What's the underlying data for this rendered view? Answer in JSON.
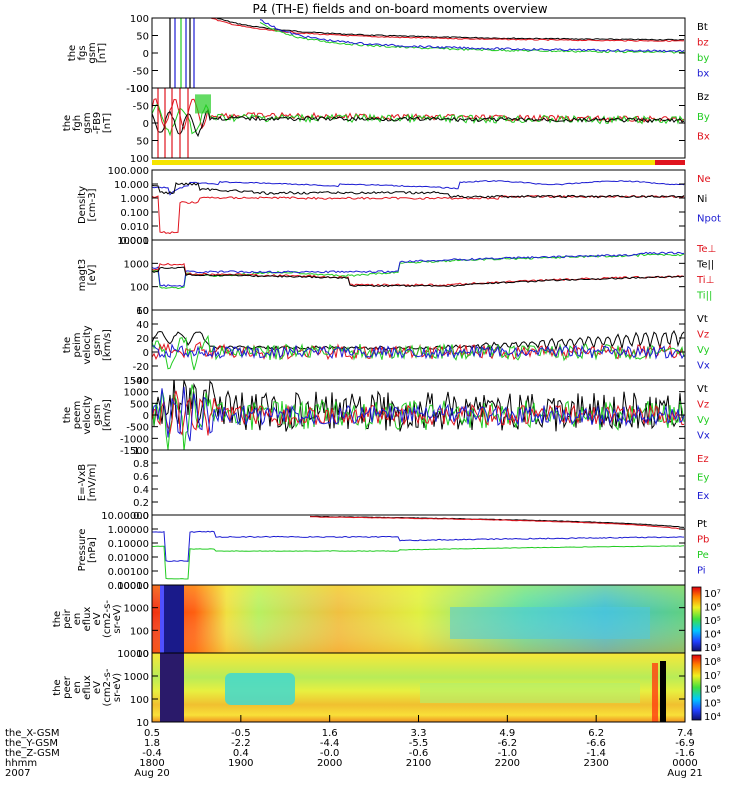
{
  "title": "P4 (TH-E) fields and on-board moments overview",
  "colors": {
    "black": "#000000",
    "red": "#e0141e",
    "green": "#22cc22",
    "blue": "#1c1cd2",
    "yellow": "#f5e400",
    "axis": "#000000"
  },
  "panels": [
    {
      "id": "fgs",
      "ylabel": [
        "the",
        "fgs",
        "gsm",
        "[nT]"
      ],
      "yticks": [
        "100",
        "50",
        "0",
        "-50",
        "-100"
      ],
      "yrange": [
        -100,
        100
      ],
      "log": false,
      "legend": [
        {
          "t": "Bt",
          "c": "black"
        },
        {
          "t": "bz",
          "c": "red"
        },
        {
          "t": "by",
          "c": "green"
        },
        {
          "t": "bx",
          "c": "blue"
        }
      ]
    },
    {
      "id": "fgh",
      "ylabel": [
        "the",
        "fgh",
        "gsm",
        "-FB9",
        "[nT]"
      ],
      "yticks": [
        "-100",
        "-50",
        "0",
        "50",
        "100"
      ],
      "yrange": [
        -120,
        100
      ],
      "log": false,
      "legend": [
        {
          "t": "Bz",
          "c": "black"
        },
        {
          "t": "By",
          "c": "green"
        },
        {
          "t": "Bx",
          "c": "red"
        }
      ]
    },
    {
      "id": "density",
      "ylabel": [
        "Density",
        "[cm-3]"
      ],
      "yticks": [
        "100.000",
        "10.000",
        "1.000",
        "0.100",
        "0.010",
        "0.001"
      ],
      "yrange": [
        0.0005,
        200
      ],
      "log": true,
      "legend": [
        {
          "t": "Ne",
          "c": "red"
        },
        {
          "t": "Ni",
          "c": "black"
        },
        {
          "t": "Npot",
          "c": "blue"
        }
      ]
    },
    {
      "id": "temp",
      "ylabel": [
        "magt3",
        "[eV]"
      ],
      "yticks": [
        "10000",
        "1000",
        "100",
        "10"
      ],
      "yrange": [
        3,
        10000
      ],
      "log": true,
      "legend": [
        {
          "t": "Te⊥",
          "c": "red"
        },
        {
          "t": "Te||",
          "c": "black"
        },
        {
          "t": "Ti⊥",
          "c": "red"
        },
        {
          "t": "Ti||",
          "c": "green"
        }
      ]
    },
    {
      "id": "peim",
      "ylabel": [
        "the",
        "peim",
        "velocity",
        "gsm",
        "[km/s]"
      ],
      "yticks": [
        "60",
        "40",
        "20",
        "0",
        "-20",
        "-40"
      ],
      "yrange": [
        -40,
        60
      ],
      "log": false,
      "legend": [
        {
          "t": "Vt",
          "c": "black"
        },
        {
          "t": "Vz",
          "c": "red"
        },
        {
          "t": "Vy",
          "c": "green"
        },
        {
          "t": "Vx",
          "c": "blue"
        }
      ]
    },
    {
      "id": "peem",
      "ylabel": [
        "the",
        "peem",
        "velocity",
        "gsm",
        "[km/s]"
      ],
      "yticks": [
        "1500",
        "1000",
        "500",
        "0",
        "-500",
        "-1000",
        "-1500"
      ],
      "yrange": [
        -1500,
        1500
      ],
      "log": false,
      "legend": [
        {
          "t": "Vt",
          "c": "black"
        },
        {
          "t": "Vz",
          "c": "red"
        },
        {
          "t": "Vy",
          "c": "green"
        },
        {
          "t": "Vx",
          "c": "blue"
        }
      ]
    },
    {
      "id": "efield",
      "ylabel": [
        "E=-VxB",
        "[mV/m]"
      ],
      "yticks": [
        "1.0",
        "0.8",
        "0.6",
        "0.4",
        "0.2",
        "0.0"
      ],
      "yrange": [
        0,
        1
      ],
      "log": false,
      "legend": [
        {
          "t": "Ez",
          "c": "red"
        },
        {
          "t": "Ey",
          "c": "green"
        },
        {
          "t": "Ex",
          "c": "blue"
        }
      ]
    },
    {
      "id": "pressure",
      "ylabel": [
        "Pressure",
        "[nPa]"
      ],
      "yticks": [
        "10.00000",
        "1.00000",
        "0.10000",
        "0.01000",
        "0.00100",
        "0.00010"
      ],
      "yrange": [
        3e-05,
        20
      ],
      "log": true,
      "legend": [
        {
          "t": "Pt",
          "c": "black"
        },
        {
          "t": "Pb",
          "c": "red"
        },
        {
          "t": "Pe",
          "c": "green"
        },
        {
          "t": "Pi",
          "c": "blue"
        }
      ]
    },
    {
      "id": "peir",
      "ylabel": [
        "the",
        "peir",
        "en",
        "eflux",
        "eV",
        "(cm2-s-",
        "sr-eV)"
      ],
      "yticks": [
        "10000",
        "1000",
        "100",
        "10"
      ],
      "yrange": [
        5,
        20000
      ],
      "log": true,
      "colorbar": [
        "10⁷",
        "10⁶",
        "10⁵",
        "10⁴",
        "10³"
      ]
    },
    {
      "id": "peer",
      "ylabel": [
        "the",
        "peer",
        "en",
        "eflux",
        "eV",
        "(cm2-s-",
        "sr-eV)"
      ],
      "yticks": [
        "10000",
        "1000",
        "100",
        "10"
      ],
      "yrange": [
        5,
        20000
      ],
      "log": true,
      "colorbar": [
        "10⁸",
        "10⁷",
        "10⁶",
        "10⁵",
        "10⁴"
      ]
    }
  ],
  "xaxis": {
    "row_labels": [
      "the_X-GSM",
      "the_Y-GSM",
      "the_Z-GSM",
      "hhmm",
      "2007"
    ],
    "ticks": [
      {
        "x": "0.5",
        "y": "1.8",
        "z": "-0.4",
        "t": "1800",
        "d": "Aug 20"
      },
      {
        "x": "-0.5",
        "y": "-2.2",
        "z": "0.4",
        "t": "1900",
        "d": ""
      },
      {
        "x": "1.6",
        "y": "-4.4",
        "z": "-0.0",
        "t": "2000",
        "d": ""
      },
      {
        "x": "3.3",
        "y": "-5.5",
        "z": "-0.6",
        "t": "2100",
        "d": ""
      },
      {
        "x": "4.9",
        "y": "-6.2",
        "z": "-1.0",
        "t": "2200",
        "d": ""
      },
      {
        "x": "6.2",
        "y": "-6.6",
        "z": "-1.4",
        "t": "2300",
        "d": ""
      },
      {
        "x": "7.4",
        "y": "-6.9",
        "z": "-1.6",
        "t": "0000",
        "d": "Aug 21"
      }
    ]
  },
  "chart_data": {
    "type": "line",
    "title": "P4 (TH-E) fields and on-board moments overview",
    "x": [
      "1800",
      "1900",
      "2000",
      "2100",
      "2200",
      "2300",
      "0000"
    ],
    "xlabel": "hhmm",
    "series": [
      {
        "name": "fgs Bt",
        "values": [
          200,
          160,
          110,
          85,
          72,
          62,
          55
        ]
      },
      {
        "name": "fgs bz",
        "values": [
          200,
          155,
          108,
          82,
          70,
          60,
          52
        ]
      },
      {
        "name": "fgs by",
        "values": [
          10,
          15,
          12,
          8,
          5,
          3,
          2
        ]
      },
      {
        "name": "fgs bx",
        "values": [
          15,
          20,
          18,
          14,
          12,
          10,
          8
        ]
      },
      {
        "name": "Ni",
        "values": [
          10,
          4,
          6,
          3,
          1.5,
          2,
          1.5
        ]
      },
      {
        "name": "Ne",
        "values": [
          0.8,
          1.2,
          1.5,
          1,
          1,
          1.5,
          1
        ]
      },
      {
        "name": "Npot",
        "values": [
          20,
          15,
          15,
          10,
          4,
          3,
          2
        ]
      },
      {
        "name": "Ti||",
        "values": [
          250,
          150,
          150,
          200,
          700,
          1500,
          1800
        ]
      },
      {
        "name": "Te||",
        "values": [
          300,
          180,
          150,
          80,
          60,
          100,
          150
        ]
      },
      {
        "name": "Pt",
        "values": [
          20,
          10,
          7,
          4,
          3,
          2.5,
          2
        ]
      },
      {
        "name": "Pe",
        "values": [
          0.03,
          0.02,
          0.02,
          0.03,
          0.03,
          0.04,
          0.05
        ]
      },
      {
        "name": "Pi",
        "values": [
          0.5,
          0.3,
          0.2,
          0.15,
          0.2,
          0.2,
          0.25
        ]
      }
    ]
  }
}
